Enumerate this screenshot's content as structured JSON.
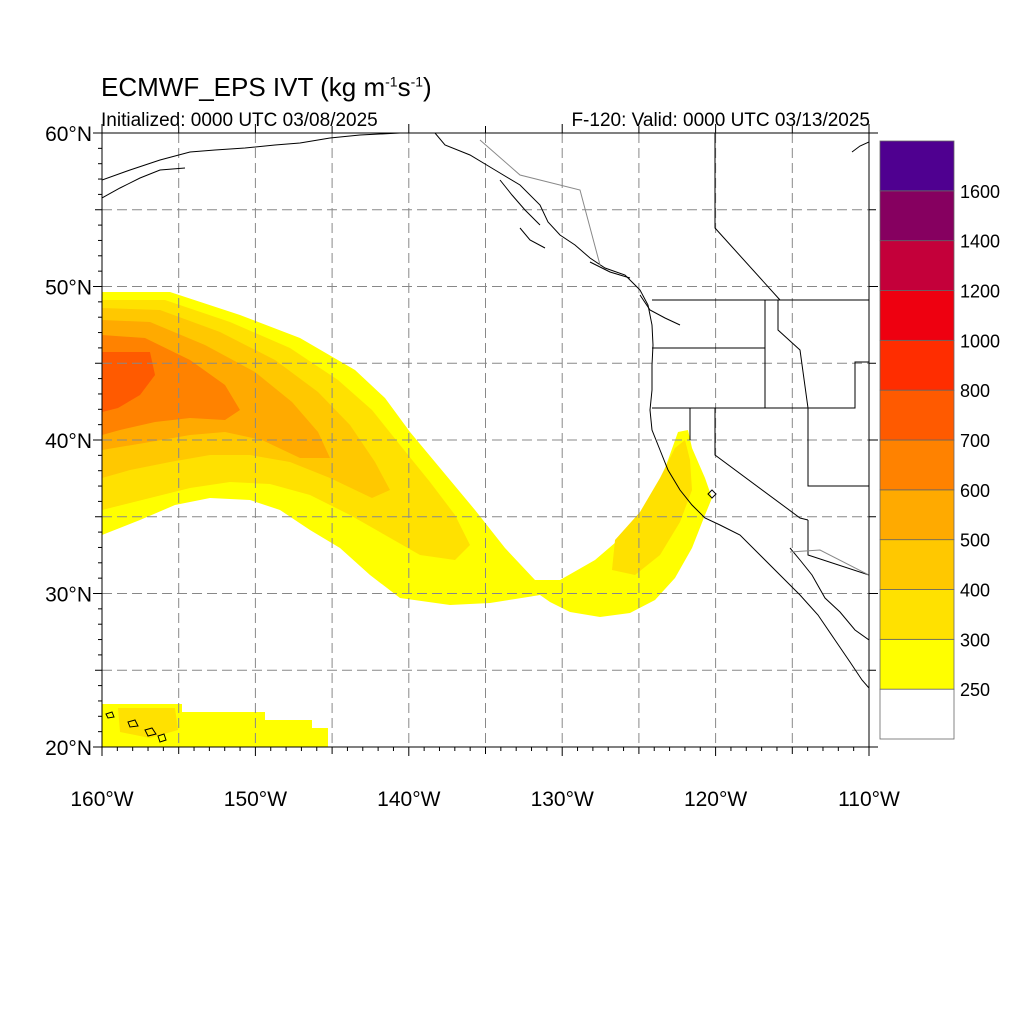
{
  "title": {
    "main_prefix": "ECMWF_EPS IVT (kg m",
    "unit_exp1": "-1",
    "unit_mid": "s",
    "unit_exp2": "-1",
    "unit_suffix": ")",
    "initialized": "Initialized: 0000 UTC 03/08/2025",
    "valid": "F-120: Valid: 0000 UTC 03/13/2025"
  },
  "axes": {
    "lon_range": [
      -160,
      -110
    ],
    "lat_range": [
      20,
      60
    ],
    "lon_labels": [
      {
        "value": -160,
        "label": "160°W"
      },
      {
        "value": -150,
        "label": "150°W"
      },
      {
        "value": -140,
        "label": "140°W"
      },
      {
        "value": -130,
        "label": "130°W"
      },
      {
        "value": -120,
        "label": "120°W"
      },
      {
        "value": -110,
        "label": "110°W"
      }
    ],
    "lat_labels": [
      {
        "value": 60,
        "label": "60°N"
      },
      {
        "value": 50,
        "label": "50°N"
      },
      {
        "value": 40,
        "label": "40°N"
      },
      {
        "value": 30,
        "label": "30°N"
      },
      {
        "value": 20,
        "label": "20°N"
      }
    ],
    "grid_lon": [
      -155,
      -150,
      -145,
      -140,
      -135,
      -130,
      -125,
      -120,
      -115
    ],
    "grid_lat": [
      25,
      30,
      35,
      40,
      45,
      50,
      55
    ]
  },
  "colorbar": {
    "levels": [
      {
        "label": "",
        "color": "#ffffff"
      },
      {
        "label": "250",
        "color": "#ffff00"
      },
      {
        "label": "300",
        "color": "#ffe100"
      },
      {
        "label": "400",
        "color": "#ffc800"
      },
      {
        "label": "500",
        "color": "#ffaa00"
      },
      {
        "label": "600",
        "color": "#ff8200"
      },
      {
        "label": "700",
        "color": "#ff5a00"
      },
      {
        "label": "800",
        "color": "#ff2d00"
      },
      {
        "label": "1000",
        "color": "#ee0010"
      },
      {
        "label": "1200",
        "color": "#c4003a"
      },
      {
        "label": "1400",
        "color": "#860060"
      },
      {
        "label": "1600",
        "color": "#4f0090"
      }
    ]
  },
  "colors": {
    "coast": "#000000",
    "border": "#888888",
    "grid": "#888888"
  }
}
